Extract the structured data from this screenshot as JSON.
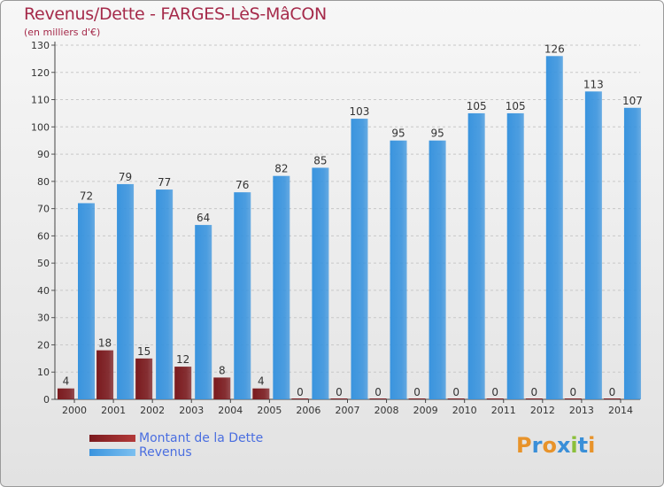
{
  "chart_data": {
    "type": "bar",
    "title": "Revenus/Dette - FARGES-LèS-MâCON",
    "subtitle": "(en milliers d'€)",
    "xlabel": "",
    "ylabel": "",
    "ylim": [
      0,
      130
    ],
    "yticks": [
      0,
      10,
      20,
      30,
      40,
      50,
      60,
      70,
      80,
      90,
      100,
      110,
      120,
      130
    ],
    "grid": true,
    "legend_position": "bottom-left",
    "categories": [
      "2000",
      "2001",
      "2002",
      "2003",
      "2004",
      "2005",
      "2006",
      "2007",
      "2008",
      "2009",
      "2010",
      "2011",
      "2012",
      "2013",
      "2014"
    ],
    "series": [
      {
        "name": "Montant de la Dette",
        "color": "#7a1a1e",
        "values": [
          4,
          18,
          15,
          12,
          8,
          4,
          0,
          0,
          0,
          0,
          0,
          0,
          0,
          0,
          0
        ]
      },
      {
        "name": "Revenus",
        "color": "#3a94de",
        "values": [
          72,
          79,
          77,
          64,
          76,
          82,
          85,
          103,
          95,
          95,
          105,
          105,
          126,
          113,
          107
        ]
      }
    ]
  },
  "logo": {
    "text": "Proxiti",
    "letter_colors": [
      "#e8932a",
      "#3a8fd8",
      "#e8932a",
      "#3a8fd8",
      "#8bbf3a",
      "#3a8fd8",
      "#e8932a"
    ]
  }
}
